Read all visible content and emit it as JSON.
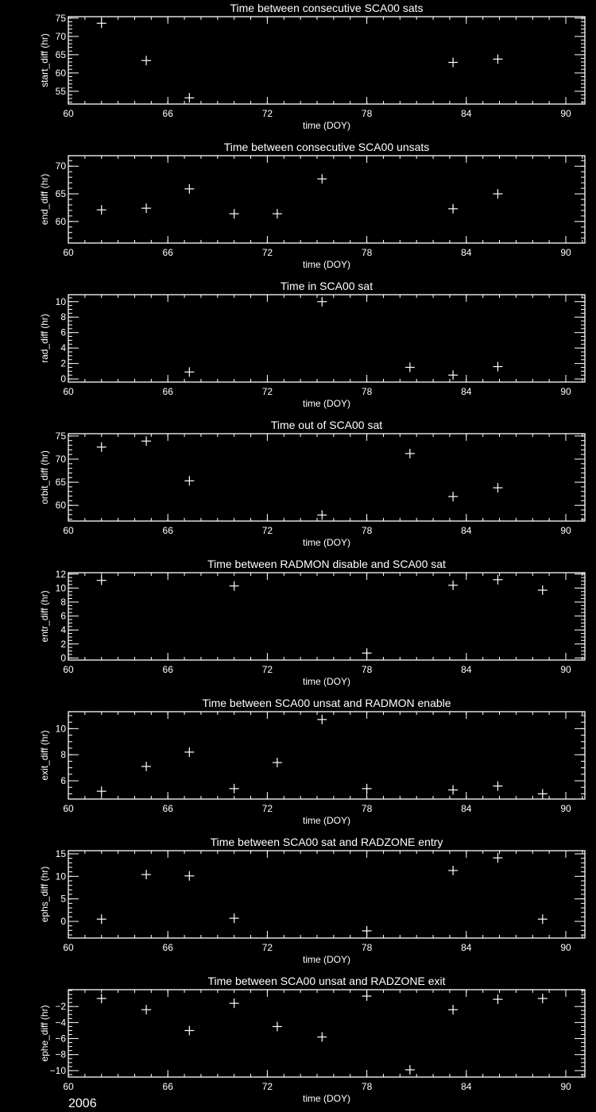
{
  "year_label": "2006",
  "chart_data": [
    {
      "type": "scatter",
      "title": "Time between consecutive SCA00 sats",
      "xlabel": "time (DOY)",
      "ylabel": "start_diff (hr)",
      "xlim": [
        60,
        91.15
      ],
      "ylim": [
        51.5,
        75.4
      ],
      "xticks": [
        60,
        66,
        72,
        78,
        84,
        90
      ],
      "yticks": [
        55,
        60,
        65,
        70,
        75
      ],
      "x": [
        62.0,
        64.7,
        67.3,
        83.2,
        85.9
      ],
      "y": [
        73.6,
        63.4,
        53.2,
        62.9,
        63.8
      ]
    },
    {
      "type": "scatter",
      "title": "Time between consecutive SCA00 unsats",
      "xlabel": "time (DOY)",
      "ylabel": "end_diff (hr)",
      "xlim": [
        60,
        91.15
      ],
      "ylim": [
        56.1,
        71.9
      ],
      "xticks": [
        60,
        66,
        72,
        78,
        84,
        90
      ],
      "yticks": [
        60,
        65,
        70
      ],
      "x": [
        62.0,
        64.7,
        67.3,
        70.0,
        72.6,
        75.3,
        83.2,
        85.9
      ],
      "y": [
        62.1,
        62.4,
        65.9,
        61.4,
        61.4,
        67.7,
        62.3,
        65.0
      ]
    },
    {
      "type": "scatter",
      "title": "Time in SCA00 sat",
      "xlabel": "time (DOY)",
      "ylabel": "rad_diff (hr)",
      "xlim": [
        60,
        91.15
      ],
      "ylim": [
        -0.4,
        10.9
      ],
      "xticks": [
        60,
        66,
        72,
        78,
        84,
        90
      ],
      "yticks": [
        0,
        2,
        4,
        6,
        8,
        10
      ],
      "x": [
        67.3,
        75.3,
        80.6,
        83.2,
        85.9
      ],
      "y": [
        0.9,
        10.0,
        1.5,
        0.5,
        1.6
      ]
    },
    {
      "type": "scatter",
      "title": "Time out of SCA00 sat",
      "xlabel": "time (DOY)",
      "ylabel": "orbit_diff (hr)",
      "xlim": [
        60,
        91.15
      ],
      "ylim": [
        56.6,
        75.5
      ],
      "xticks": [
        60,
        66,
        72,
        78,
        84,
        90
      ],
      "yticks": [
        60,
        65,
        70,
        75
      ],
      "x": [
        62.0,
        64.7,
        67.3,
        75.3,
        80.6,
        83.2,
        85.9
      ],
      "y": [
        72.6,
        73.9,
        65.3,
        57.9,
        71.2,
        61.9,
        63.8
      ]
    },
    {
      "type": "scatter",
      "title": "Time between RADMON disable and SCA00 sat",
      "xlabel": "time (DOY)",
      "ylabel": "entr_diff (hr)",
      "xlim": [
        60,
        91.15
      ],
      "ylim": [
        -0.3,
        12.2
      ],
      "xticks": [
        60,
        66,
        72,
        78,
        84,
        90
      ],
      "yticks": [
        0,
        2,
        4,
        6,
        8,
        10,
        12
      ],
      "x": [
        62.0,
        70.0,
        78.0,
        83.2,
        85.9,
        88.6
      ],
      "y": [
        11.1,
        10.3,
        0.7,
        10.4,
        11.2,
        9.7
      ]
    },
    {
      "type": "scatter",
      "title": "Time between SCA00 unsat and RADMON enable",
      "xlabel": "time (DOY)",
      "ylabel": "exit_diff (hr)",
      "xlim": [
        60,
        91.15
      ],
      "ylim": [
        4.6,
        11.3
      ],
      "xticks": [
        60,
        66,
        72,
        78,
        84,
        90
      ],
      "yticks": [
        6,
        8,
        10
      ],
      "x": [
        62.0,
        64.7,
        67.3,
        70.0,
        72.6,
        75.3,
        78.0,
        83.2,
        85.9,
        88.6
      ],
      "y": [
        5.2,
        7.1,
        8.2,
        5.4,
        7.4,
        10.7,
        5.4,
        5.3,
        5.6,
        5.0
      ]
    },
    {
      "type": "scatter",
      "title": "Time between SCA00 sat and RADZONE entry",
      "xlabel": "time (DOY)",
      "ylabel": "ephs_diff (hr)",
      "xlim": [
        60,
        91.15
      ],
      "ylim": [
        -3.7,
        15.7
      ],
      "xticks": [
        60,
        66,
        72,
        78,
        84,
        90
      ],
      "yticks": [
        0,
        5,
        10,
        15
      ],
      "x": [
        62.0,
        64.7,
        67.3,
        70.0,
        78.0,
        83.2,
        85.9,
        88.6
      ],
      "y": [
        0.5,
        10.4,
        10.1,
        0.7,
        -2.1,
        11.3,
        14.1,
        0.5
      ]
    },
    {
      "type": "scatter",
      "title": "Time between SCA00 unsat and RADZONE exit",
      "xlabel": "time (DOY)",
      "ylabel": "ephe_diff (hr)",
      "xlim": [
        60,
        91.15
      ],
      "ylim": [
        -10.8,
        0.1
      ],
      "xticks": [
        60,
        66,
        72,
        78,
        84,
        90
      ],
      "yticks": [
        -10,
        -8,
        -6,
        -4,
        -2
      ],
      "x": [
        62.0,
        64.7,
        67.3,
        70.0,
        72.6,
        75.3,
        78.0,
        80.6,
        83.2,
        85.9,
        88.6
      ],
      "y": [
        -1.0,
        -2.4,
        -5.0,
        -1.6,
        -4.5,
        -5.8,
        -0.7,
        -9.9,
        -2.4,
        -1.1,
        -1.0
      ]
    }
  ]
}
